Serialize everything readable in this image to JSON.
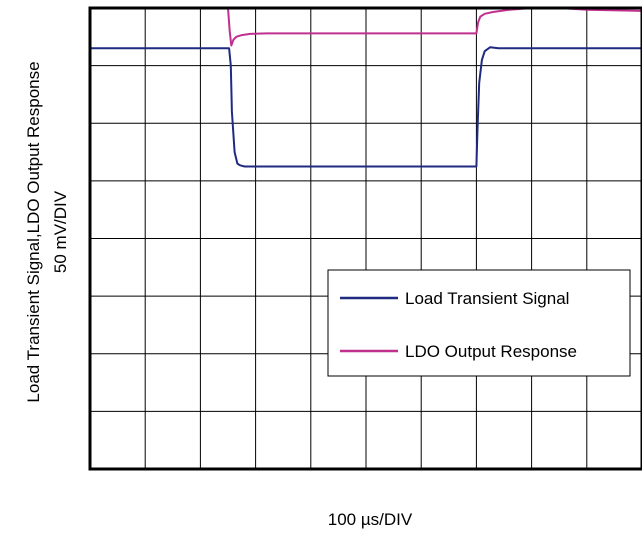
{
  "chart_data": {
    "type": "line",
    "title": "",
    "xlabel": "100 µs/DIV",
    "ylabel_line1": "Load  Transient Signal,LDO Output Response",
    "ylabel_line2": "50 mV/DIV",
    "grid": true,
    "x_divisions": 10,
    "y_divisions": 8,
    "xlim": [
      0,
      10
    ],
    "ylim": [
      0,
      8
    ],
    "legend": {
      "placement": "bottom-right",
      "entries": [
        {
          "label": "Load  Transient Signal",
          "color": "#1f2a80"
        },
        {
          "label": "LDO Output Response",
          "color": "#c0308e"
        }
      ]
    },
    "series": [
      {
        "name": "Load  Transient Signal",
        "color": "#1f2a80",
        "x": [
          0,
          2.52,
          2.55,
          2.57,
          2.62,
          2.67,
          2.72,
          2.8,
          3.2,
          7.0,
          7.02,
          7.05,
          7.1,
          7.15,
          7.25,
          7.4,
          10
        ],
        "y": [
          7.3,
          7.3,
          7.0,
          6.2,
          5.5,
          5.3,
          5.27,
          5.25,
          5.25,
          5.25,
          5.9,
          6.7,
          7.1,
          7.25,
          7.32,
          7.3,
          7.3
        ]
      },
      {
        "name": "LDO Output Response",
        "color": "#c0308e",
        "x": [
          0,
          2.5,
          2.53,
          2.56,
          2.6,
          2.65,
          2.75,
          2.9,
          3.2,
          4.0,
          7.0,
          7.03,
          7.07,
          7.15,
          7.3,
          7.6,
          8.0,
          8.5,
          9.0,
          10
        ],
        "y": [
          8.0,
          8.0,
          7.6,
          7.35,
          7.45,
          7.5,
          7.53,
          7.55,
          7.56,
          7.56,
          7.56,
          7.75,
          7.85,
          7.9,
          7.93,
          7.97,
          8.0,
          8.0,
          7.97,
          7.95
        ]
      }
    ]
  }
}
